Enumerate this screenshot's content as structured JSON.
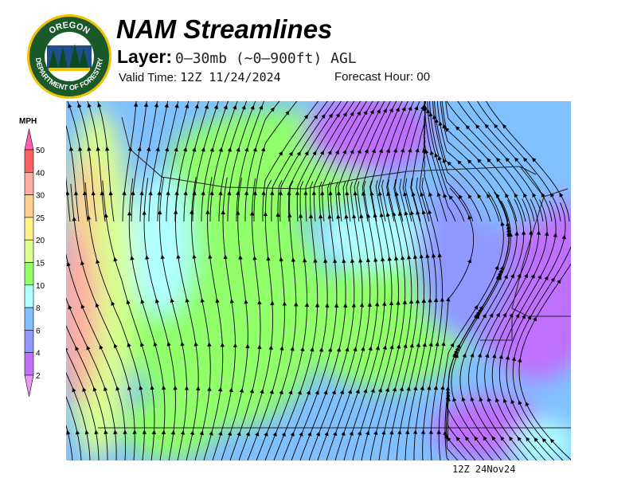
{
  "header": {
    "title": "NAM Streamlines",
    "layer_label": "Layer:",
    "layer_value": "0–30mb (~0–900ft) AGL",
    "valid_label": "Valid Time:",
    "valid_value": "12Z 11/24/2024",
    "forecast_label": "Forecast Hour:",
    "forecast_value": "00"
  },
  "logo": {
    "top_text": "OREGON",
    "bottom_text": "DEPARTMENT OF FORESTRY",
    "ring_color": "#1a5a2a",
    "border_color": "#f2c200"
  },
  "colorbar": {
    "units": "MPH",
    "labels": [
      "50",
      "40",
      "30",
      "25",
      "20",
      "15",
      "10",
      "8",
      "6",
      "4",
      "2"
    ],
    "colors": [
      "#ff6060",
      "#ffaca0",
      "#ffd090",
      "#fff08a",
      "#d8ff90",
      "#90ff6a",
      "#b0ffff",
      "#80c0ff",
      "#9098ff",
      "#c070ff"
    ],
    "over_color": "#ff5eb4",
    "under_color": "#e89af0"
  },
  "footer": {
    "timestamp": "12Z 24Nov24"
  }
}
